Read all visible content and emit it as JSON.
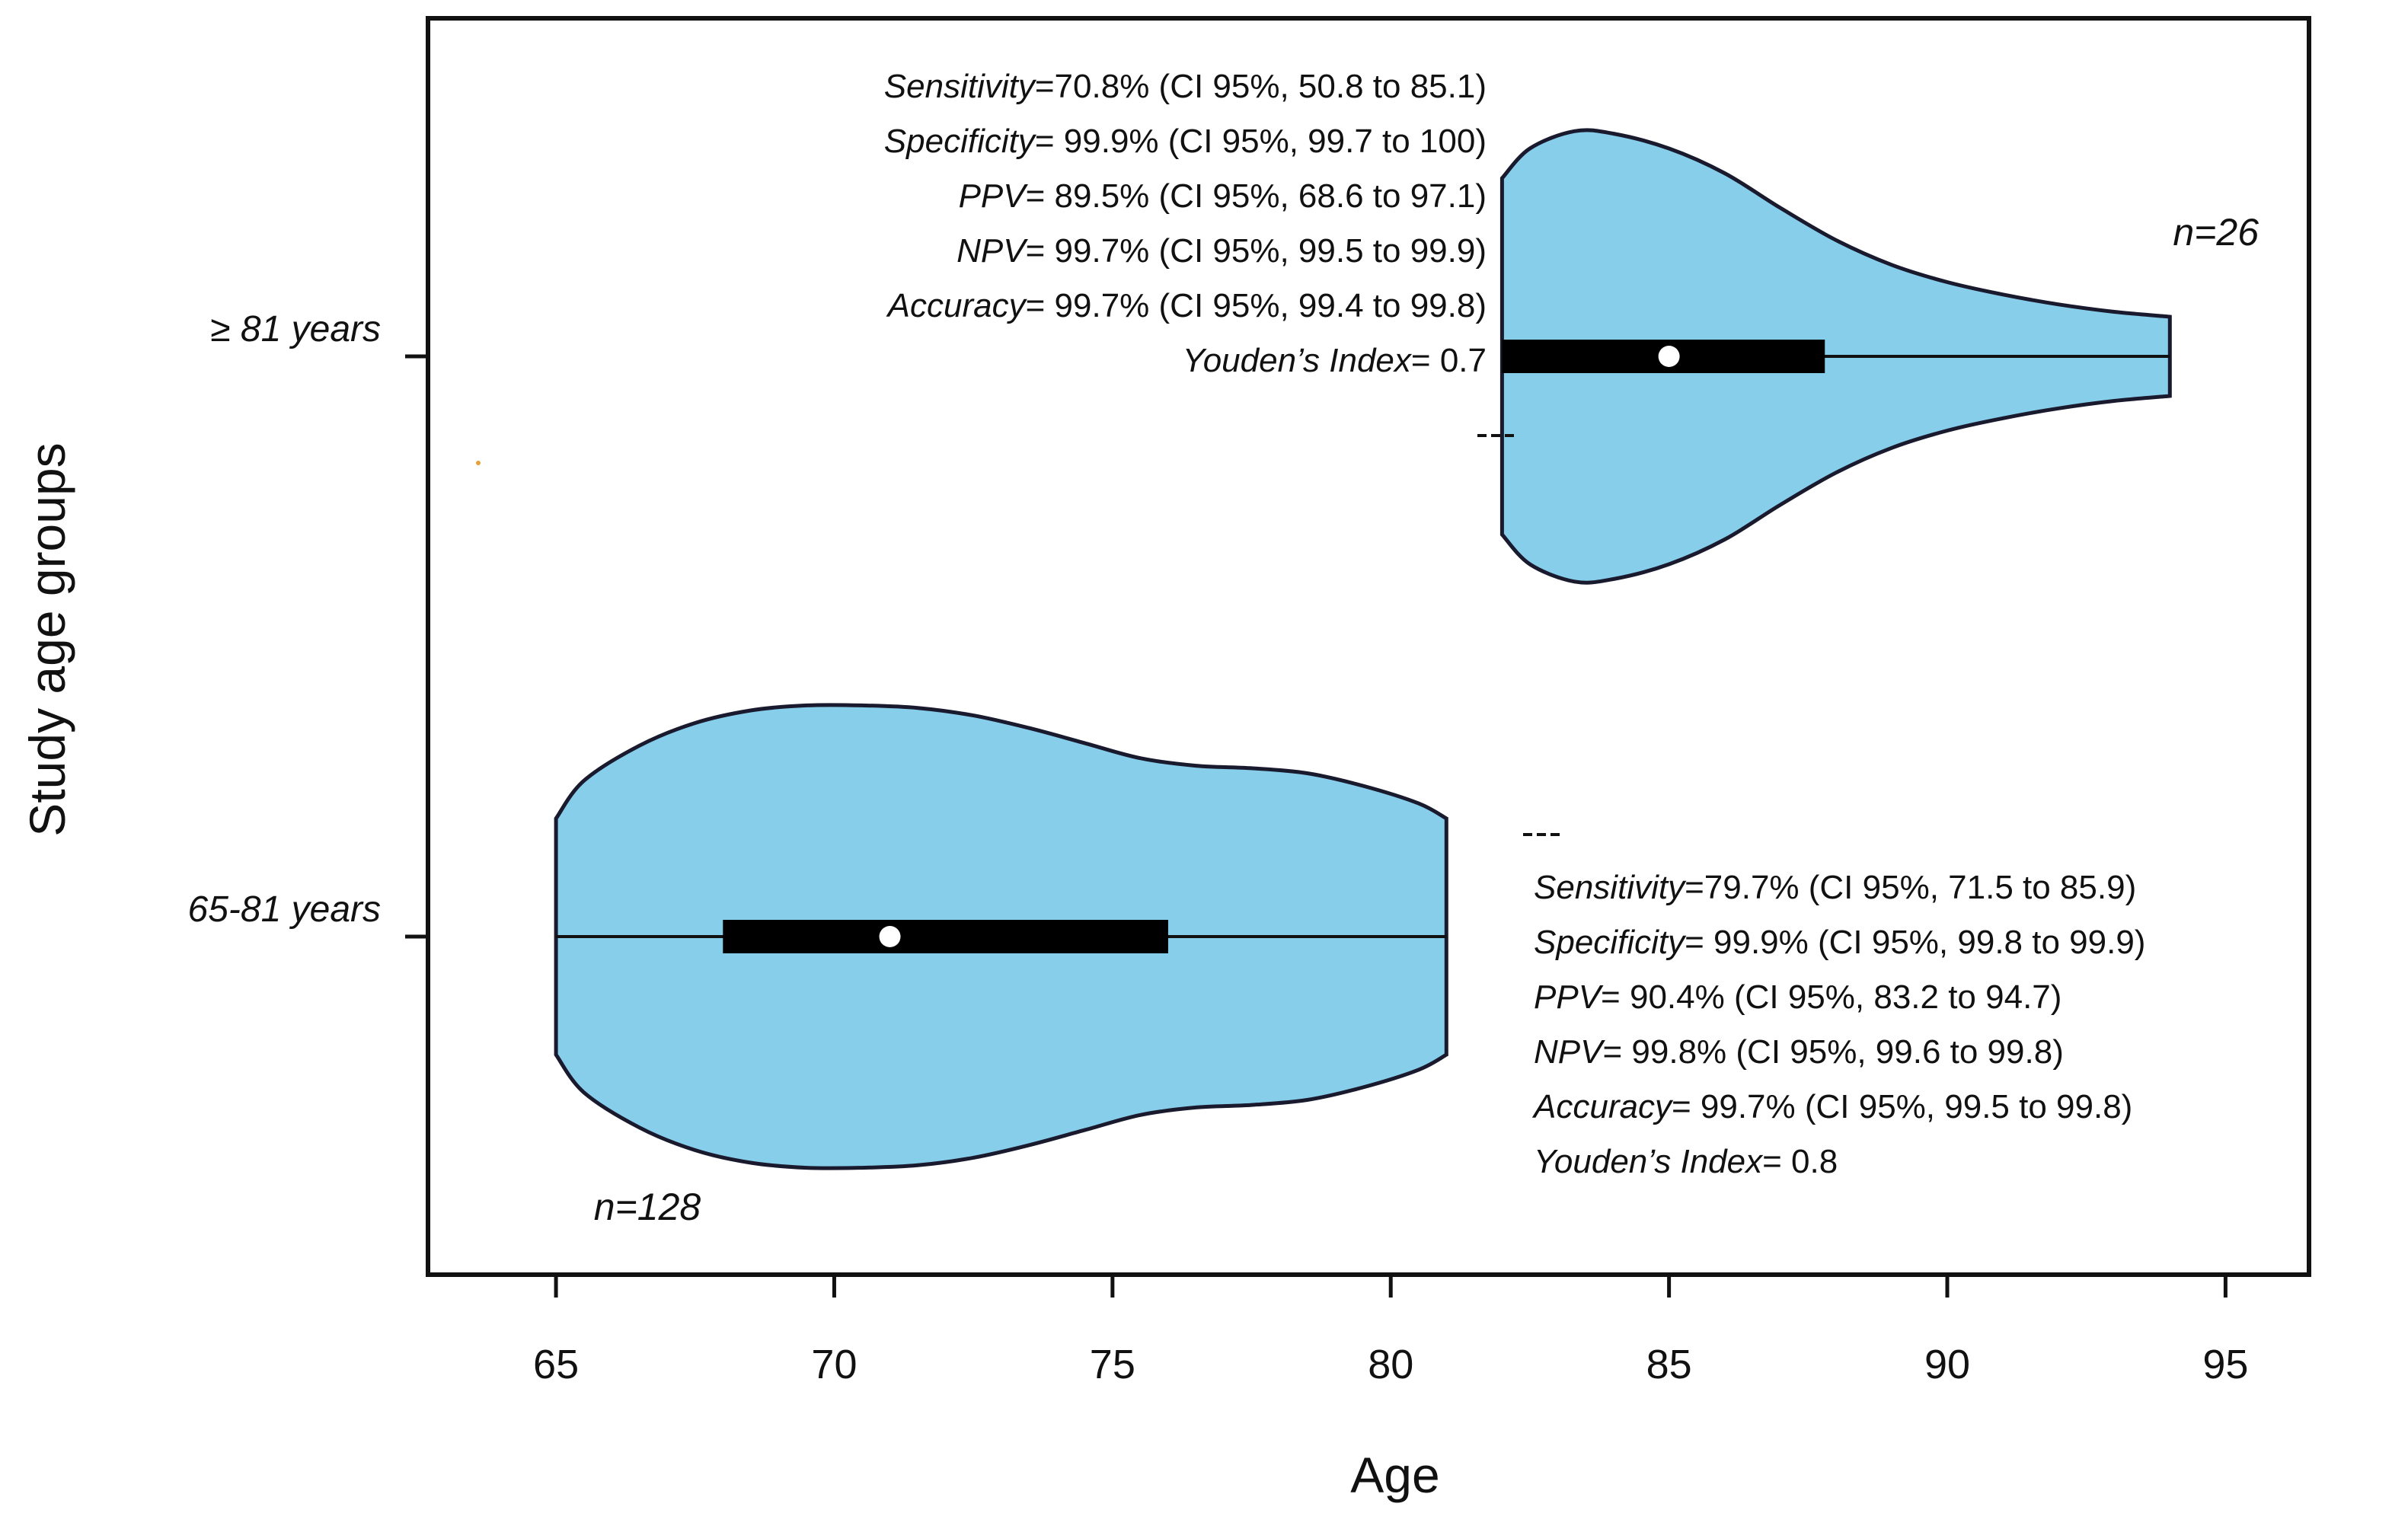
{
  "chart_data": {
    "type": "violin",
    "orientation": "horizontal",
    "title": "",
    "xlabel": "Age",
    "ylabel": "Study age groups",
    "xlim": [
      62.7,
      96.5
    ],
    "x_ticks": [
      65,
      70,
      75,
      80,
      85,
      90,
      95
    ],
    "x_tick_labels": [
      "65",
      "70",
      "75",
      "80",
      "85",
      "90",
      "95"
    ],
    "fill_color": "#87ceeb",
    "outline_color": "#1a1a2e",
    "groups": [
      {
        "label": "≥ 81 years",
        "n_label": "n=26",
        "min": 82,
        "max": 94,
        "q1": 82,
        "q3": 87.8,
        "median": 85,
        "density_profile": [
          [
            82,
            0.72
          ],
          [
            82.5,
            0.84
          ],
          [
            83.3,
            0.91
          ],
          [
            84,
            0.9
          ],
          [
            85,
            0.84
          ],
          [
            86,
            0.74
          ],
          [
            87,
            0.6
          ],
          [
            88,
            0.47
          ],
          [
            89,
            0.37
          ],
          [
            90,
            0.3
          ],
          [
            91,
            0.25
          ],
          [
            92,
            0.21
          ],
          [
            93,
            0.18
          ],
          [
            94,
            0.16
          ]
        ],
        "stats": [
          {
            "name": "Sensitivity",
            "text": "=70.8% (CI 95%, 50.8 to 85.1)"
          },
          {
            "name": "Specificity",
            "text": "= 99.9% (CI 95%, 99.7 to 100)"
          },
          {
            "name": "PPV",
            "text": "= 89.5% (CI 95%, 68.6 to 97.1)"
          },
          {
            "name": "NPV",
            "text": "= 99.7% (CI 95%, 99.5 to 99.9)"
          },
          {
            "name": "Accuracy",
            "text": "=  99.7% (CI 95%, 99.4 to 99.8)"
          },
          {
            "name": "Youden’s Index",
            "text": "=  0.7"
          }
        ]
      },
      {
        "label": "65-81 years",
        "n_label": "n=128",
        "min": 65,
        "max": 81,
        "q1": 68,
        "q3": 76,
        "median": 71,
        "density_profile": [
          [
            65,
            0.47
          ],
          [
            65.5,
            0.62
          ],
          [
            66.5,
            0.76
          ],
          [
            67.5,
            0.85
          ],
          [
            68.5,
            0.9
          ],
          [
            69.5,
            0.92
          ],
          [
            70.5,
            0.92
          ],
          [
            71.5,
            0.91
          ],
          [
            72.5,
            0.88
          ],
          [
            73.5,
            0.83
          ],
          [
            74.5,
            0.77
          ],
          [
            75.5,
            0.71
          ],
          [
            76.5,
            0.68
          ],
          [
            77.5,
            0.67
          ],
          [
            78.5,
            0.65
          ],
          [
            79.5,
            0.6
          ],
          [
            80.5,
            0.53
          ],
          [
            81,
            0.47
          ]
        ],
        "stats": [
          {
            "name": "Sensitivity",
            "text": "=79.7% (CI 95%, 71.5 to 85.9)"
          },
          {
            "name": "Specificity",
            "text": "= 99.9% (CI 95%, 99.8 to 99.9)"
          },
          {
            "name": "PPV",
            "text": "= 90.4% (CI 95%, 83.2 to 94.7)"
          },
          {
            "name": "NPV",
            "text": "= 99.8% (CI 95%, 99.6 to 99.8)"
          },
          {
            "name": "Accuracy",
            "text": "=  99.7% (CI 95%, 99.5 to 99.8)"
          },
          {
            "name": "Youden’s Index",
            "text": "=  0.8"
          }
        ]
      }
    ]
  }
}
